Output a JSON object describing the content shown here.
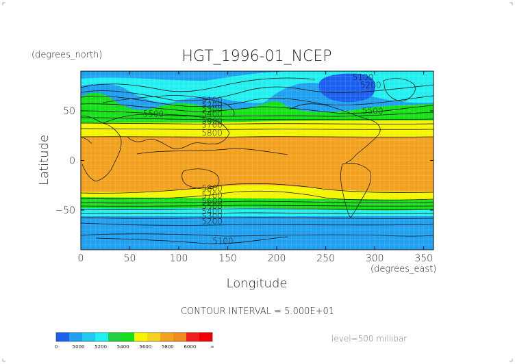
{
  "figure": {
    "title": "HGT_1996-01_NCEP",
    "x_axis_label": "Longitude",
    "y_axis_label": "Latitude",
    "x_units": "(degrees_east)",
    "y_units": "(degrees_north)",
    "contour_interval_text": "CONTOUR INTERVAL = 5.000E+01",
    "level_text": "level=500 millibar"
  },
  "axes": {
    "x_ticks": [
      0,
      50,
      100,
      150,
      200,
      250,
      300,
      350
    ],
    "x_tick_labels": [
      "0",
      "50",
      "100",
      "150",
      "200",
      "250",
      "300",
      "350"
    ],
    "y_ticks": [
      50,
      0,
      -50
    ],
    "y_tick_labels": [
      "50",
      "0",
      "−50"
    ],
    "x_range": [
      0,
      360
    ],
    "y_range": [
      -90,
      90
    ]
  },
  "map": {
    "contour_labels": [
      {
        "text": "5100",
        "lon": 288,
        "lat": 81
      },
      {
        "text": "5200",
        "lon": 296,
        "lat": 73
      },
      {
        "text": "5500",
        "lon": 298,
        "lat": 47
      },
      {
        "text": "5100",
        "lon": 134,
        "lat": 58
      },
      {
        "text": "5200",
        "lon": 134,
        "lat": 53
      },
      {
        "text": "5300",
        "lon": 134,
        "lat": 49
      },
      {
        "text": "5400",
        "lon": 134,
        "lat": 44
      },
      {
        "text": "5500",
        "lon": 74,
        "lat": 44
      },
      {
        "text": "5600",
        "lon": 134,
        "lat": 37
      },
      {
        "text": "5700",
        "lon": 134,
        "lat": 33
      },
      {
        "text": "5800",
        "lon": 134,
        "lat": 25
      },
      {
        "text": "5800",
        "lon": 134,
        "lat": -31
      },
      {
        "text": "5700",
        "lon": 134,
        "lat": -38
      },
      {
        "text": "5600",
        "lon": 134,
        "lat": -44
      },
      {
        "text": "5500",
        "lon": 134,
        "lat": -49
      },
      {
        "text": "5400",
        "lon": 134,
        "lat": -54
      },
      {
        "text": "5300",
        "lon": 134,
        "lat": -59
      },
      {
        "text": "5200",
        "lon": 134,
        "lat": -64
      },
      {
        "text": "5100",
        "lon": 145,
        "lat": -84
      }
    ]
  },
  "colorbar": {
    "colors": [
      "#1a5ff0",
      "#1fa0f0",
      "#21c8f2",
      "#22f0f0",
      "#25d040",
      "#16e018",
      "#f5f500",
      "#f5d21e",
      "#f2a21e",
      "#f08c1e",
      "#f01e1e",
      "#f00000"
    ],
    "labels": [
      "0",
      "5000",
      "5200",
      "5400",
      "5600",
      "5800",
      "6000",
      "∞"
    ]
  },
  "colors": {
    "ocean_blue": "#1fa0f0",
    "deep_blue": "#1a5ff0",
    "cyan": "#22f0f0",
    "green": "#16e018",
    "yellow": "#f5f500",
    "orange": "#f2a21e",
    "red": "#f01e1e"
  }
}
